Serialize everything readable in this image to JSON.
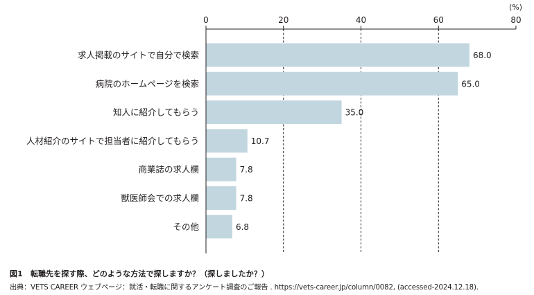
{
  "chart_data": {
    "type": "bar",
    "orientation": "horizontal",
    "unit": "(%)",
    "categories": [
      "求人掲載のサイトで自分で検索",
      "病院のホームページを検索",
      "知人に紹介してもらう",
      "人材紹介のサイトで担当者に紹介してもらう",
      "商業誌の求人欄",
      "獣医師会での求人欄",
      "その他"
    ],
    "values": [
      68.0,
      65.0,
      35.0,
      10.7,
      7.8,
      7.8,
      6.8
    ],
    "value_labels": [
      "68.0",
      "65.0",
      "35.0",
      "10.7",
      "7.8",
      "7.8",
      "6.8"
    ],
    "xlim": [
      0,
      80
    ],
    "xticks": [
      0,
      20,
      40,
      60,
      80
    ],
    "xtick_labels": [
      "0",
      "20",
      "40",
      "60",
      "80"
    ],
    "axis_position": "top",
    "grid": "dashed vertical at 20, 40, 60",
    "bar_color": "#c2d6df"
  },
  "caption": {
    "title": "図1　転職先を探す際、どのような方法で探しますか？（探しましたか？）",
    "source": "出典：VETS CAREER ウェブページ：就活・転職に関するアンケート調査のご報告 . https://vets-career.jp/column/0082, (accessed-2024.12.18)."
  }
}
